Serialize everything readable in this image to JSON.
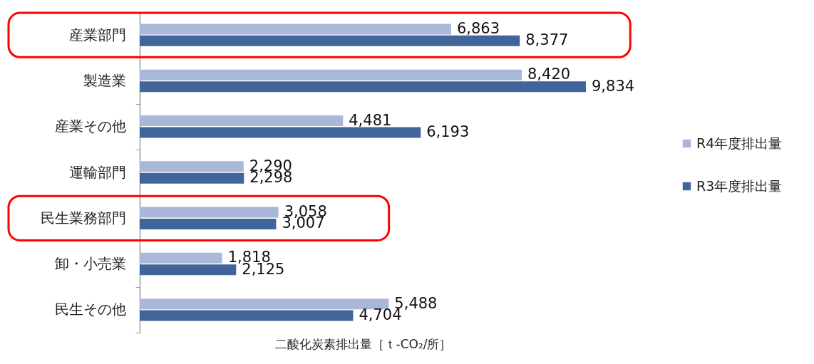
{
  "chart_data": {
    "type": "bar",
    "orientation": "horizontal",
    "xlabel": "二酸化炭素排出量［ｔ-CO₂/所］",
    "categories": [
      "産業部門",
      "製造業",
      "産業その他",
      "運輸部門",
      "民生業務部門",
      "卸・小売業",
      "民生その他"
    ],
    "series": [
      {
        "name": "R4年度排出量",
        "color": "#a9b8d8",
        "values": [
          6863,
          8420,
          4481,
          2290,
          3058,
          1818,
          5488
        ],
        "value_labels": [
          "6,863",
          "8,420",
          "4,481",
          "2,290",
          "3,058",
          "1,818",
          "5,488"
        ]
      },
      {
        "name": "R3年度排出量",
        "color": "#3f659a",
        "values": [
          8377,
          9834,
          6193,
          2298,
          3007,
          2125,
          4704
        ],
        "value_labels": [
          "8,377",
          "9,834",
          "6,193",
          "2,298",
          "3,007",
          "2,125",
          "4,704"
        ]
      }
    ],
    "legend": "right",
    "tick_labels": "y"
  }
}
